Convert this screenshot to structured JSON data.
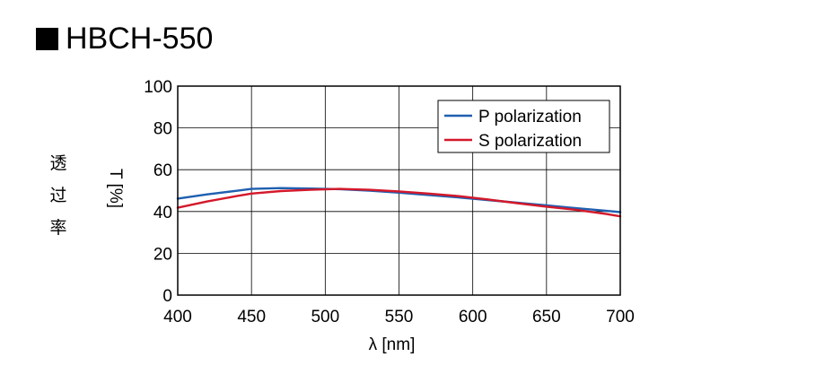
{
  "title": "HBCH-550",
  "ylabel_cjk": [
    "透",
    "过",
    "率"
  ],
  "ylabel_unit": "T [%]",
  "chart_data": {
    "type": "line",
    "title": "HBCH-550",
    "xlabel": "λ  [nm]",
    "ylabel": "T [%]",
    "xlim": [
      400,
      700
    ],
    "ylim": [
      0,
      100
    ],
    "xticks": [
      400,
      450,
      500,
      550,
      600,
      650,
      700
    ],
    "yticks": [
      0,
      20,
      40,
      60,
      80,
      100
    ],
    "grid": true,
    "legend_position": "top-right",
    "series": [
      {
        "name": "P polarization",
        "color": "#1f5fb0",
        "x": [
          400,
          420,
          440,
          450,
          470,
          490,
          510,
          530,
          550,
          570,
          590,
          610,
          630,
          650,
          670,
          690,
          700
        ],
        "y": [
          46.2,
          48.2,
          49.9,
          50.8,
          51.2,
          51.0,
          50.7,
          50.0,
          49.0,
          47.9,
          46.8,
          45.5,
          44.2,
          42.9,
          41.6,
          40.4,
          39.7
        ]
      },
      {
        "name": "S polarization",
        "color": "#d4182a",
        "x": [
          400,
          420,
          440,
          450,
          470,
          490,
          510,
          530,
          550,
          570,
          590,
          610,
          630,
          650,
          670,
          690,
          700
        ],
        "y": [
          41.8,
          44.8,
          47.4,
          48.6,
          49.8,
          50.4,
          50.8,
          50.4,
          49.6,
          48.6,
          47.4,
          45.8,
          44.0,
          42.3,
          40.8,
          38.9,
          37.7
        ]
      }
    ]
  }
}
